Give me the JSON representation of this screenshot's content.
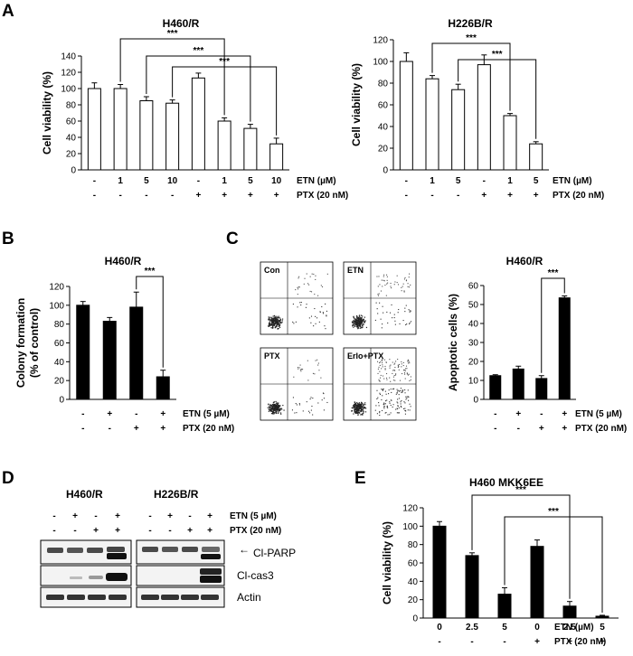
{
  "panels": {
    "A": "A",
    "B": "B",
    "C": "C",
    "D": "D",
    "E": "E"
  },
  "chart_data": [
    {
      "id": "A1",
      "type": "bar",
      "title": "H460/R",
      "ylabel": "Cell viability (%)",
      "ylim": [
        0,
        140
      ],
      "yticks": [
        0,
        20,
        40,
        60,
        80,
        100,
        120,
        140
      ],
      "values": [
        100,
        100,
        85,
        82,
        113,
        60,
        51,
        32
      ],
      "errors": [
        7,
        5,
        5,
        4,
        6,
        4,
        5,
        7
      ],
      "fill": "#ffffff",
      "conditions": [
        {
          "name": "ETN (µM)",
          "labels": [
            "-",
            "1",
            "5",
            "10",
            "-",
            "1",
            "5",
            "10"
          ]
        },
        {
          "name": "PTX (20 nM)",
          "labels": [
            "-",
            "-",
            "-",
            "-",
            "+",
            "+",
            "+",
            "+"
          ]
        }
      ],
      "significance": [
        {
          "from": 1,
          "to": 5,
          "label": "***"
        },
        {
          "from": 2,
          "to": 6,
          "label": "***"
        },
        {
          "from": 3,
          "to": 7,
          "label": "***"
        }
      ]
    },
    {
      "id": "A2",
      "type": "bar",
      "title": "H226B/R",
      "ylabel": "Cell viability (%)",
      "ylim": [
        0,
        120
      ],
      "yticks": [
        0,
        20,
        40,
        60,
        80,
        100,
        120
      ],
      "values": [
        100,
        84,
        74,
        97,
        50,
        24
      ],
      "errors": [
        8,
        3,
        5,
        9,
        2,
        2
      ],
      "fill": "#ffffff",
      "conditions": [
        {
          "name": "ETN (µM)",
          "labels": [
            "-",
            "1",
            "5",
            "-",
            "1",
            "5"
          ]
        },
        {
          "name": "PTX (20 nM)",
          "labels": [
            "-",
            "-",
            "-",
            "+",
            "+",
            "+"
          ]
        }
      ],
      "significance": [
        {
          "from": 1,
          "to": 4,
          "label": "***"
        },
        {
          "from": 2,
          "to": 5,
          "label": "***"
        }
      ]
    },
    {
      "id": "B",
      "type": "bar",
      "title": "H460/R",
      "ylabel": "Colony formation (% of control)",
      "ylabel_lines": [
        "Colony formation",
        "(% of control)"
      ],
      "ylim": [
        0,
        120
      ],
      "yticks": [
        0,
        20,
        40,
        60,
        80,
        100,
        120
      ],
      "values": [
        100,
        83,
        98,
        24
      ],
      "errors": [
        4,
        4,
        16,
        7
      ],
      "fill": "#000000",
      "conditions": [
        {
          "name": "ETN (5 µM)",
          "labels": [
            "-",
            "+",
            "-",
            "+"
          ]
        },
        {
          "name": "PTX (20 nM)",
          "labels": [
            "-",
            "-",
            "+",
            "+"
          ]
        }
      ],
      "significance": [
        {
          "from": 2,
          "to": 3,
          "label": "***"
        }
      ]
    },
    {
      "id": "C",
      "type": "bar",
      "title": "H460/R",
      "ylabel": "Apoptotic cells (%)",
      "ylim": [
        0,
        60
      ],
      "yticks": [
        0,
        10,
        20,
        30,
        40,
        50,
        60
      ],
      "values": [
        12.5,
        16,
        11,
        53.5
      ],
      "errors": [
        0.5,
        1.5,
        1.5,
        1
      ],
      "fill": "#000000",
      "conditions": [
        {
          "name": "ETN (5 µM)",
          "labels": [
            "-",
            "+",
            "-",
            "+"
          ]
        },
        {
          "name": "PTX (20 nM)",
          "labels": [
            "-",
            "-",
            "+",
            "+"
          ]
        }
      ],
      "significance": [
        {
          "from": 2,
          "to": 3,
          "label": "***"
        }
      ]
    },
    {
      "id": "E",
      "type": "bar",
      "title": "H460 MKK6EE",
      "ylabel": "Cell viability (%)",
      "ylim": [
        0,
        120
      ],
      "yticks": [
        0,
        20,
        40,
        60,
        80,
        100,
        120
      ],
      "values": [
        100,
        68,
        26,
        78,
        13,
        2
      ],
      "errors": [
        5,
        3,
        7,
        7,
        5,
        1
      ],
      "fill": "#000000",
      "conditions": [
        {
          "name": "ETN (µM)",
          "labels": [
            "0",
            "2.5",
            "5",
            "0",
            "2.5",
            "5"
          ]
        },
        {
          "name": "PTX (20 nM)",
          "labels": [
            "-",
            "-",
            "-",
            "+",
            "+",
            "+"
          ]
        }
      ],
      "significance": [
        {
          "from": 1,
          "to": 4,
          "label": "***"
        },
        {
          "from": 2,
          "to": 5,
          "label": "***"
        }
      ]
    }
  ],
  "flow": {
    "labels": [
      "Con",
      "ETN",
      "PTX",
      "Erlo+PTX"
    ]
  },
  "blot": {
    "groups": [
      "H460/R",
      "H226B/R"
    ],
    "etn_label": "ETN (5 µM)",
    "ptx_label": "PTX (20 nM)",
    "etn_signs": [
      "-",
      "+",
      "-",
      "+"
    ],
    "ptx_signs": [
      "-",
      "-",
      "+",
      "+"
    ],
    "bands": [
      "Cl-PARP",
      "Cl-cas3",
      "Actin"
    ],
    "arrow": "←"
  }
}
